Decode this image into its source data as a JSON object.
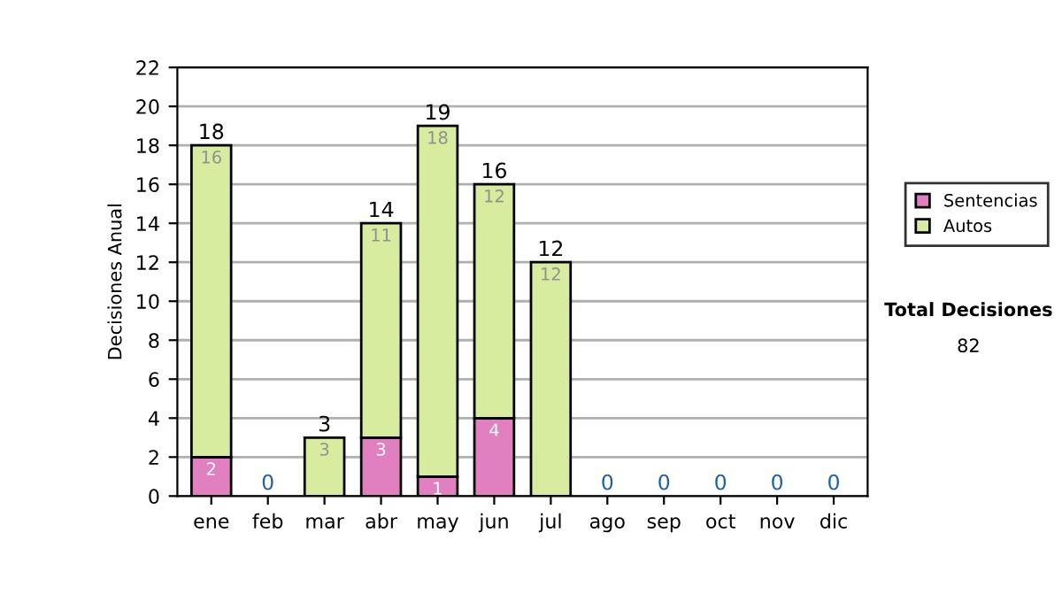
{
  "chart_data": {
    "type": "bar",
    "stacked": true,
    "ylabel": "Decisiones Anual",
    "categories": [
      "ene",
      "feb",
      "mar",
      "abr",
      "may",
      "jun",
      "jul",
      "ago",
      "sep",
      "oct",
      "nov",
      "dic"
    ],
    "series": [
      {
        "name": "Sentencias",
        "color": "#e080c0",
        "values": [
          2,
          0,
          0,
          3,
          1,
          4,
          0,
          0,
          0,
          0,
          0,
          0
        ],
        "value_labels": [
          "2",
          null,
          null,
          "3",
          "1",
          "4",
          null,
          null,
          null,
          null,
          null,
          null
        ]
      },
      {
        "name": "Autos",
        "color": "#d8eca0",
        "values": [
          16,
          0,
          3,
          11,
          18,
          12,
          12,
          0,
          0,
          0,
          0,
          0
        ],
        "value_labels": [
          "16",
          null,
          "3",
          "11",
          "18",
          "12",
          "12",
          null,
          null,
          null,
          null,
          null
        ]
      }
    ],
    "totals": [
      "18",
      "0",
      "3",
      "14",
      "19",
      "16",
      "12",
      "0",
      "0",
      "0",
      "0",
      "0"
    ],
    "ylim": [
      0,
      22
    ],
    "yticks": [
      0,
      2,
      4,
      6,
      8,
      10,
      12,
      14,
      16,
      18,
      20,
      22
    ],
    "grid": "y",
    "legend": "right",
    "annotations": [
      "Total Decisiones",
      "82"
    ]
  }
}
